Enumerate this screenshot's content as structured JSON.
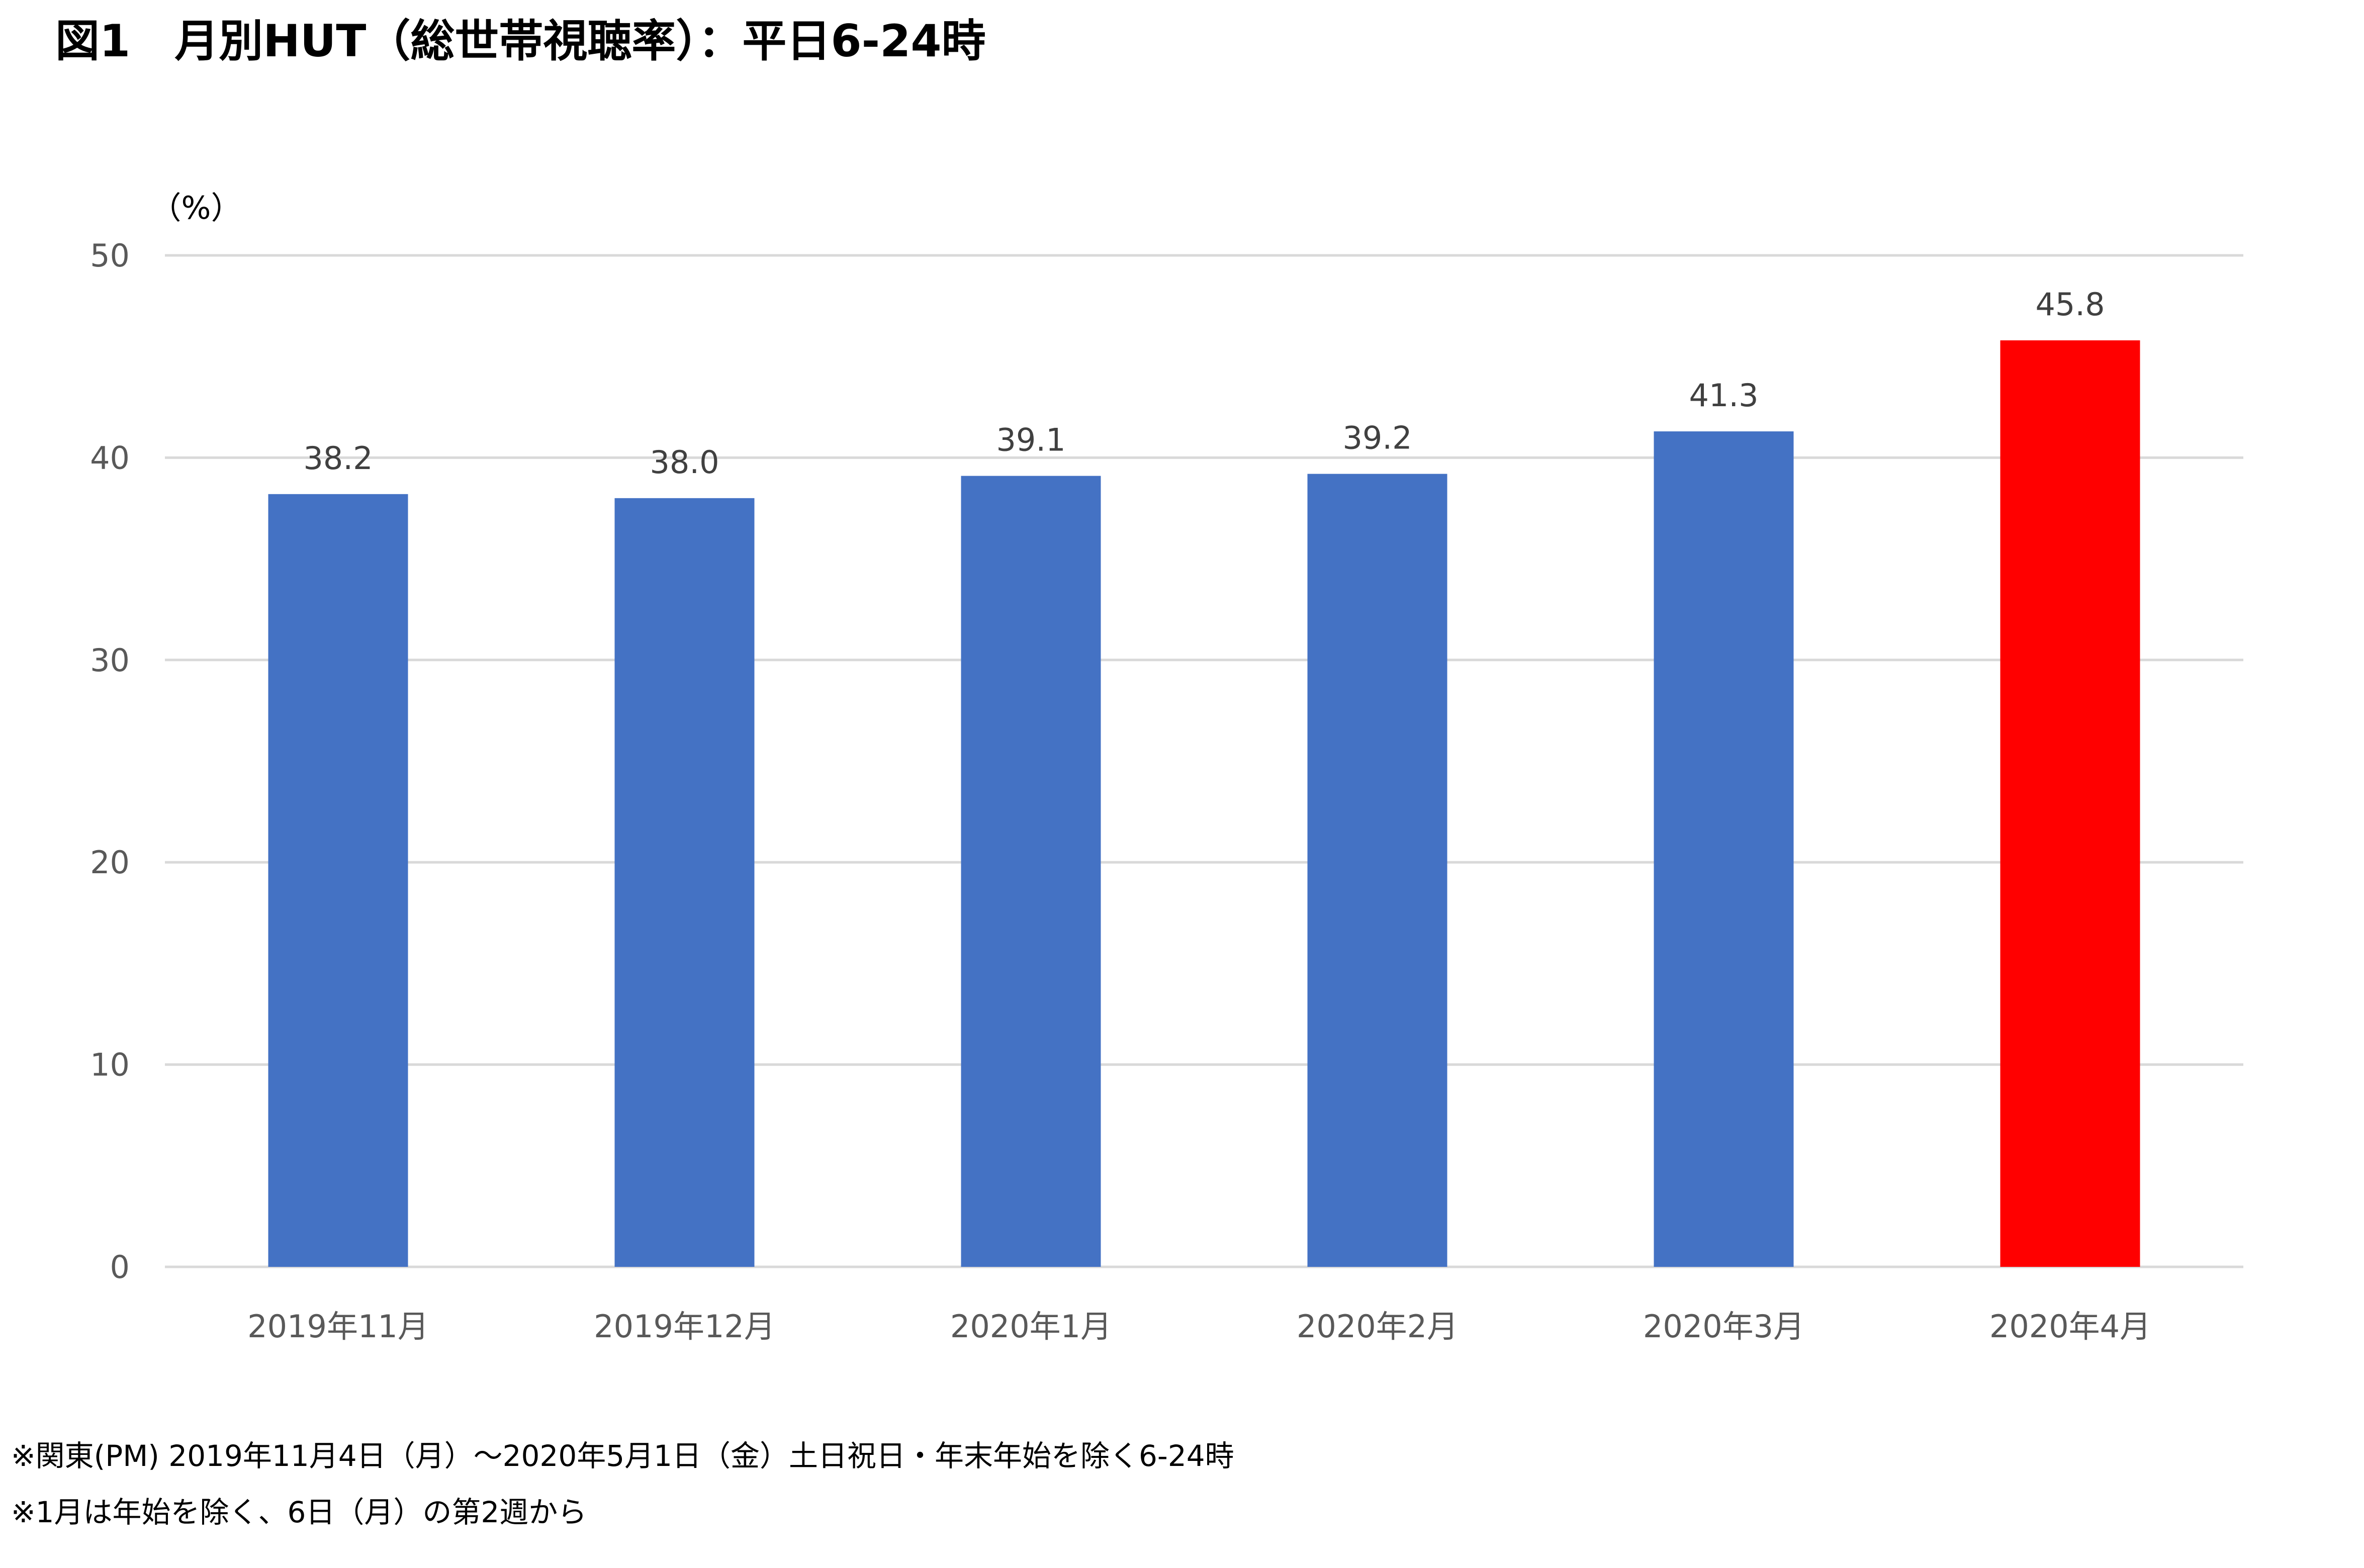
{
  "title": "図1　月別HUT（総世帯視聴率）：平日6-24時",
  "chart_data": {
    "type": "bar",
    "categories": [
      "2019年11月",
      "2019年12月",
      "2020年1月",
      "2020年2月",
      "2020年3月",
      "2020年4月"
    ],
    "values": [
      38.2,
      38.0,
      39.1,
      39.2,
      41.3,
      45.8
    ],
    "data_labels": [
      "38.2",
      "38.0",
      "39.1",
      "39.2",
      "41.3",
      "45.8"
    ],
    "bar_colors": [
      "#4472C4",
      "#4472C4",
      "#4472C4",
      "#4472C4",
      "#4472C4",
      "#FF0000"
    ],
    "ylabel": "（%）",
    "ylim": [
      0,
      50
    ],
    "yticks": [
      0,
      10,
      20,
      30,
      40,
      50
    ],
    "grid": true,
    "gridline_color": "#D9D9D9"
  },
  "notes": [
    "※関東(PM) 2019年11月4日（月）～2020年5月1日（金）土日祝日・年末年始を除く6-24時",
    "※1月は年始を除く、6日（月）の第2週から"
  ]
}
